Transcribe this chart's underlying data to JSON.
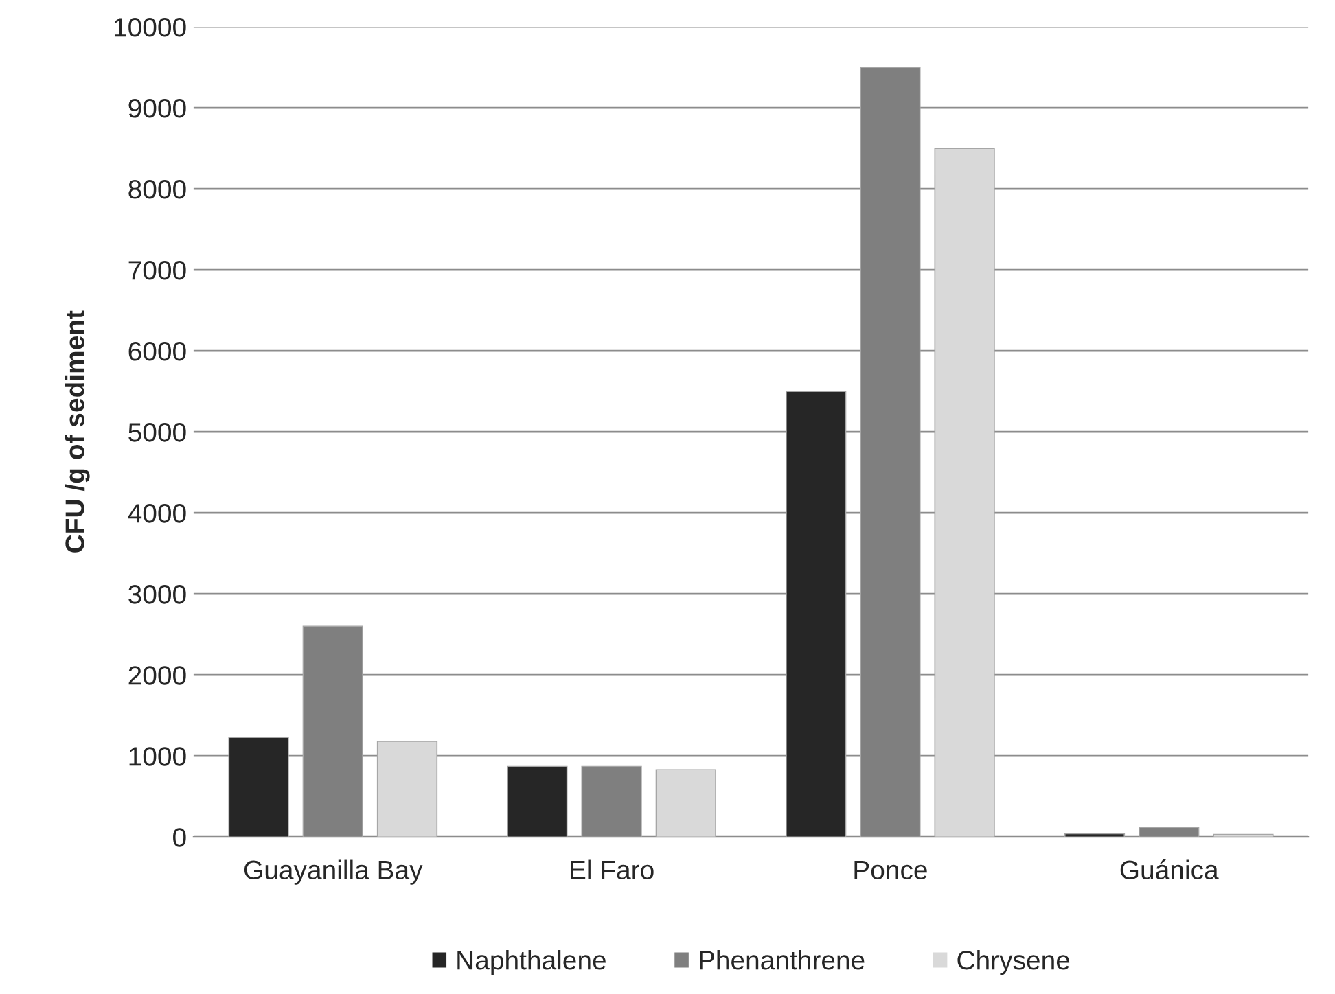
{
  "chart_data": {
    "type": "bar",
    "ylabel": "CFU /g of sediment",
    "categories": [
      "Guayanilla Bay",
      "El Faro",
      "Ponce",
      "Guánica"
    ],
    "series": [
      {
        "name": "Naphthalene",
        "color": "#262626",
        "values": [
          1230,
          870,
          5500,
          40
        ]
      },
      {
        "name": "Phenanthrene",
        "color": "#7f7f7f",
        "values": [
          2600,
          870,
          9500,
          120
        ]
      },
      {
        "name": "Chrysene",
        "color": "#d9d9d9",
        "values": [
          1180,
          830,
          8500,
          30
        ]
      }
    ],
    "ylim": [
      0,
      10000
    ],
    "yticks": [
      0,
      1000,
      2000,
      3000,
      4000,
      5000,
      6000,
      7000,
      8000,
      9000,
      10000
    ],
    "grid": "y",
    "legend": "bottom"
  }
}
